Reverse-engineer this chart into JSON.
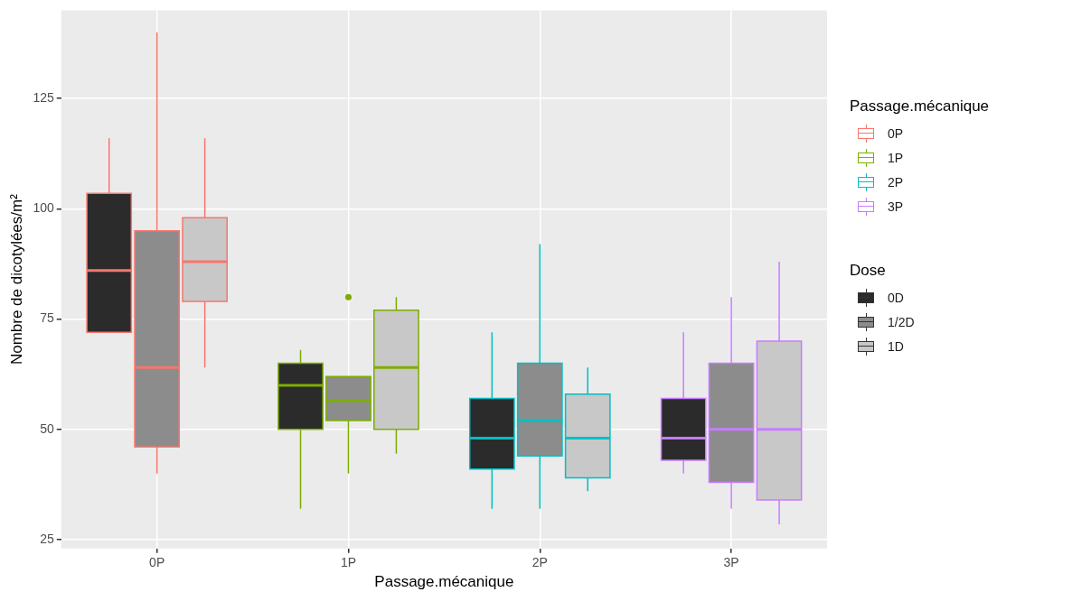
{
  "chart_data": {
    "type": "box",
    "xlabel": "Passage.mécanique",
    "ylabel": "Nombre de dicotylées/m²",
    "legend_title": [
      "Passage.mécanique",
      "Dose"
    ],
    "categories": [
      "0P",
      "1P",
      "2P",
      "3P"
    ],
    "ylim": [
      23,
      145
    ],
    "yticks": [
      25,
      50,
      75,
      100,
      125
    ],
    "grid": true,
    "legend": "right",
    "series": [
      {
        "name": "0D",
        "color": "#2b2b2b",
        "boxes": [
          {
            "low": 72,
            "q1": 72,
            "median": 86,
            "q3": 103.5,
            "high": 116
          },
          {
            "low": 32,
            "q1": 50,
            "median": 60,
            "q3": 65,
            "high": 68
          },
          {
            "low": 32,
            "q1": 41,
            "median": 48,
            "q3": 57,
            "high": 72
          },
          {
            "low": 40,
            "q1": 43,
            "median": 48,
            "q3": 57,
            "high": 72
          }
        ]
      },
      {
        "name": "1/2D",
        "color": "#8c8c8c",
        "boxes": [
          {
            "low": 40,
            "q1": 46,
            "median": 64,
            "q3": 95,
            "high": 140
          },
          {
            "low": 40,
            "q1": 52,
            "median": 56.5,
            "q3": 62,
            "high": 62,
            "outliers": [
              80
            ]
          },
          {
            "low": 32,
            "q1": 44,
            "median": 52,
            "q3": 65,
            "high": 92
          },
          {
            "low": 32,
            "q1": 38,
            "median": 50,
            "q3": 65,
            "high": 80
          }
        ]
      },
      {
        "name": "1D",
        "color": "#c8c8c8",
        "boxes": [
          {
            "low": 64,
            "q1": 79,
            "median": 88,
            "q3": 98,
            "high": 116
          },
          {
            "low": 44.5,
            "q1": 50,
            "median": 64,
            "q3": 77,
            "high": 80
          },
          {
            "low": 36,
            "q1": 39,
            "median": 48,
            "q3": 58,
            "high": 64
          },
          {
            "low": 28.5,
            "q1": 34,
            "median": 50,
            "q3": 70,
            "high": 88
          }
        ]
      }
    ]
  }
}
